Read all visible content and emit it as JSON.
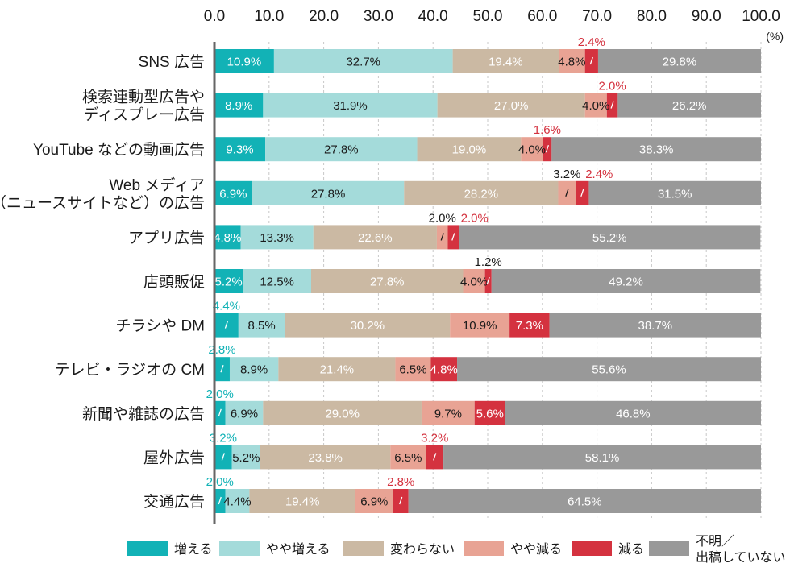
{
  "chart_data": {
    "type": "bar",
    "orientation": "horizontal",
    "stacked": true,
    "xlim": [
      0,
      100
    ],
    "x_ticks": [
      "0.0",
      "10.0",
      "20.0",
      "30.0",
      "40.0",
      "50.0",
      "60.0",
      "70.0",
      "80.0",
      "90.0",
      "100.0"
    ],
    "unit_label": "(%)",
    "categories": [
      [
        "SNS 広告"
      ],
      [
        "検索連動型広告や",
        "ディスプレー広告"
      ],
      [
        "YouTube などの動画広告"
      ],
      [
        "Web メディア",
        "（ニュースサイトなど）の広告"
      ],
      [
        "アプリ広告"
      ],
      [
        "店頭販促"
      ],
      [
        "チラシや DM"
      ],
      [
        "テレビ・ラジオの CM"
      ],
      [
        "新聞や雑誌の広告"
      ],
      [
        "屋外広告"
      ],
      [
        "交通広告"
      ]
    ],
    "series": [
      {
        "name": "増える",
        "color": "#12b2b6",
        "label_color": "#ffffff",
        "values": [
          10.9,
          8.9,
          9.3,
          6.9,
          4.8,
          5.2,
          4.4,
          2.8,
          2.0,
          3.2,
          2.0
        ]
      },
      {
        "name": "やや増える",
        "color": "#a4dbda",
        "label_color": "#1a1a1a",
        "values": [
          32.7,
          31.9,
          27.8,
          27.8,
          13.3,
          12.5,
          8.5,
          8.9,
          6.9,
          5.2,
          4.4
        ]
      },
      {
        "name": "変わらない",
        "color": "#cbb9a3",
        "label_color": "#ffffff",
        "values": [
          19.4,
          27.0,
          19.0,
          28.2,
          22.6,
          27.8,
          30.2,
          21.4,
          29.0,
          23.8,
          19.4
        ]
      },
      {
        "name": "やや減る",
        "color": "#e8a394",
        "label_color": "#1a1a1a",
        "values": [
          4.8,
          4.0,
          4.0,
          3.2,
          2.0,
          4.0,
          10.9,
          6.5,
          9.7,
          6.5,
          6.9
        ]
      },
      {
        "name": "減る",
        "color": "#d4323f",
        "label_color": "#ffffff",
        "values": [
          2.4,
          2.0,
          1.6,
          2.4,
          2.0,
          1.2,
          7.3,
          4.8,
          5.6,
          3.2,
          2.8
        ]
      },
      {
        "name": "不明／出稿していない",
        "legend_lines": [
          "不明／",
          "出稿していない"
        ],
        "color": "#999999",
        "label_color": "#ffffff",
        "values": [
          29.8,
          26.2,
          38.3,
          31.5,
          55.2,
          49.2,
          38.7,
          55.6,
          46.8,
          58.1,
          64.5
        ]
      }
    ],
    "external_labels": [
      {
        "row": 0,
        "series": 4,
        "text": "2.4%",
        "color": "#d4323f"
      },
      {
        "row": 1,
        "series": 4,
        "text": "2.0%",
        "color": "#d4323f"
      },
      {
        "row": 2,
        "series": 4,
        "text": "1.6%",
        "color": "#d4323f"
      },
      {
        "row": 3,
        "series": 3,
        "text": "3.2%",
        "color": "#1a1a1a"
      },
      {
        "row": 3,
        "series": 4,
        "text": "2.4%",
        "color": "#d4323f"
      },
      {
        "row": 4,
        "series": 3,
        "text": "2.0%",
        "color": "#1a1a1a"
      },
      {
        "row": 4,
        "series": 4,
        "text": "2.0%",
        "color": "#d4323f"
      },
      {
        "row": 5,
        "series": 4,
        "text": "1.2%",
        "color": "#1a1a1a"
      },
      {
        "row": 6,
        "series": 0,
        "text": "4.4%",
        "color": "#12b2b6"
      },
      {
        "row": 7,
        "series": 0,
        "text": "2.8%",
        "color": "#12b2b6"
      },
      {
        "row": 8,
        "series": 0,
        "text": "2.0%",
        "color": "#12b2b6"
      },
      {
        "row": 9,
        "series": 0,
        "text": "3.2%",
        "color": "#12b2b6"
      },
      {
        "row": 9,
        "series": 4,
        "text": "3.2%",
        "color": "#d4323f"
      },
      {
        "row": 10,
        "series": 0,
        "text": "2.0%",
        "color": "#12b2b6"
      },
      {
        "row": 10,
        "series": 4,
        "text": "2.8%",
        "color": "#d4323f"
      }
    ],
    "grid": true,
    "legend_position": "bottom"
  }
}
